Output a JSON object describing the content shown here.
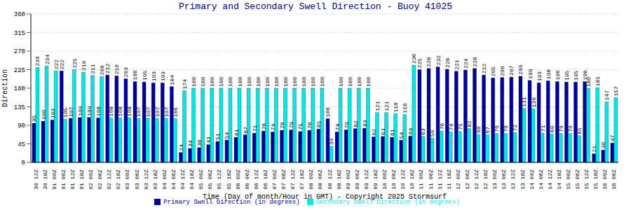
{
  "chart_data": {
    "type": "bar",
    "title": "Primary and Secondary Swell Direction - Buoy 41025",
    "x_label": "Time (Day of month/Hour in GMT) - Copyright 2025 Stormsurf",
    "y_label": "Direction",
    "categories": [
      "30 12Z",
      "30 18Z",
      "01 00Z",
      "01 06Z",
      "01 12Z",
      "01 18Z",
      "02 00Z",
      "02 06Z",
      "02 12Z",
      "02 18Z",
      "03 00Z",
      "03 06Z",
      "03 12Z",
      "03 18Z",
      "04 00Z",
      "04 06Z",
      "04 12Z",
      "04 18Z",
      "05 00Z",
      "05 06Z",
      "05 12Z",
      "05 18Z",
      "06 00Z",
      "06 06Z",
      "06 12Z",
      "06 18Z",
      "07 00Z",
      "07 06Z",
      "07 12Z",
      "07 18Z",
      "08 00Z",
      "08 06Z",
      "08 12Z",
      "08 18Z",
      "09 00Z",
      "09 06Z",
      "09 12Z",
      "09 18Z",
      "10 00Z",
      "10 06Z",
      "10 12Z",
      "10 18Z",
      "11 00Z",
      "11 06Z",
      "11 12Z",
      "11 18Z",
      "12 00Z",
      "12 06Z",
      "12 12Z",
      "12 18Z",
      "13 00Z",
      "13 06Z",
      "13 12Z",
      "13 18Z",
      "14 00Z",
      "14 06Z",
      "14 12Z",
      "14 18Z",
      "15 00Z",
      "15 06Z",
      "15 12Z",
      "15 18Z",
      "16 00Z",
      "16 06Z"
    ],
    "series": [
      {
        "name": "Primary Swell Direction (in degrees)",
        "color": "#0000a0",
        "values": [
          95,
          100,
          103,
          222,
          107,
          109,
          109,
          108,
          212,
          210,
          203,
          196,
          195,
          193,
          193,
          184,
          24,
          34,
          36,
          43,
          51,
          54,
          61,
          67,
          71,
          76,
          74,
          78,
          79,
          75,
          78,
          81,
          106,
          74,
          79,
          82,
          83,
          62,
          63,
          61,
          54,
          64,
          225,
          228,
          232,
          226,
          221,
          224,
          228,
          212,
          205,
          206,
          207,
          209,
          199,
          193,
          198,
          196,
          195,
          195,
          196,
          21,
          30,
          47
        ]
      },
      {
        "name": "Secondary Swell Direction (in degrees)",
        "color": "#00e8e8",
        "values": [
          230,
          234,
          222,
          105,
          225,
          219,
          211,
          208,
          108,
          108,
          108,
          107,
          107,
          107,
          107,
          106,
          174,
          180,
          180,
          180,
          180,
          180,
          180,
          180,
          180,
          180,
          180,
          180,
          180,
          180,
          180,
          180,
          39,
          180,
          180,
          180,
          180,
          121,
          121,
          118,
          116,
          236,
          63,
          59,
          76,
          74,
          75,
          82,
          68,
          67,
          70,
          70,
          72,
          131,
          130,
          71,
          69,
          70,
          70,
          65,
          180,
          181,
          147,
          157
        ]
      }
    ],
    "ylim": [
      0,
      360
    ],
    "yticks": [
      0,
      45,
      90,
      135,
      180,
      225,
      270,
      315,
      360
    ],
    "grid": true,
    "legend": "bottom",
    "data_labels": true
  }
}
